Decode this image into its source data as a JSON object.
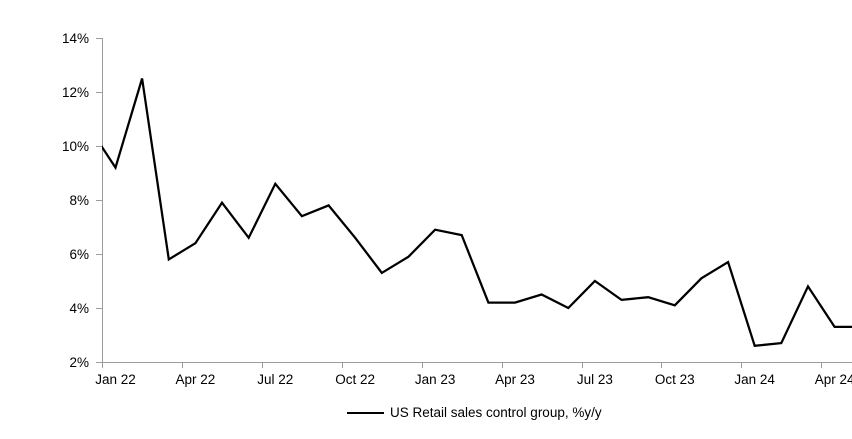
{
  "chart_data": {
    "type": "line",
    "title": "",
    "xlabel": "",
    "ylabel": "",
    "x": [
      "2021-12",
      "2022-01",
      "2022-02",
      "2022-03",
      "2022-04",
      "2022-05",
      "2022-06",
      "2022-07",
      "2022-08",
      "2022-09",
      "2022-10",
      "2022-11",
      "2022-12",
      "2023-01",
      "2023-02",
      "2023-03",
      "2023-04",
      "2023-05",
      "2023-06",
      "2023-07",
      "2023-08",
      "2023-09",
      "2023-10",
      "2023-11",
      "2023-12",
      "2024-01",
      "2024-02",
      "2024-03",
      "2024-04",
      "2024-05"
    ],
    "series": [
      {
        "name": "US Retail sales control group, %y/y",
        "color": "#000000",
        "values": [
          10.7,
          9.2,
          12.5,
          5.8,
          6.4,
          7.9,
          6.6,
          8.6,
          7.4,
          7.8,
          6.6,
          5.3,
          5.9,
          6.9,
          6.7,
          4.2,
          4.2,
          4.5,
          4.0,
          5.0,
          4.3,
          4.4,
          4.1,
          5.1,
          5.7,
          2.6,
          2.7,
          4.8,
          3.3,
          3.3
        ]
      }
    ],
    "x_tick_labels": [
      "Jan 22",
      "Apr 22",
      "Jul 22",
      "Oct 22",
      "Jan 23",
      "Apr 23",
      "Jul 23",
      "Oct 23",
      "Jan 24",
      "Apr 24"
    ],
    "y_tick_labels": [
      "2%",
      "4%",
      "6%",
      "8%",
      "10%",
      "12%",
      "14%"
    ],
    "ylim": [
      2,
      14
    ],
    "y_tick_step": 2,
    "grid": false,
    "legend_position": "bottom",
    "axis_color": "#9c9c9c",
    "line_color": "#000000",
    "background_color": "#ffffff"
  },
  "legend": {
    "label": "US Retail sales control group, %y/y"
  }
}
